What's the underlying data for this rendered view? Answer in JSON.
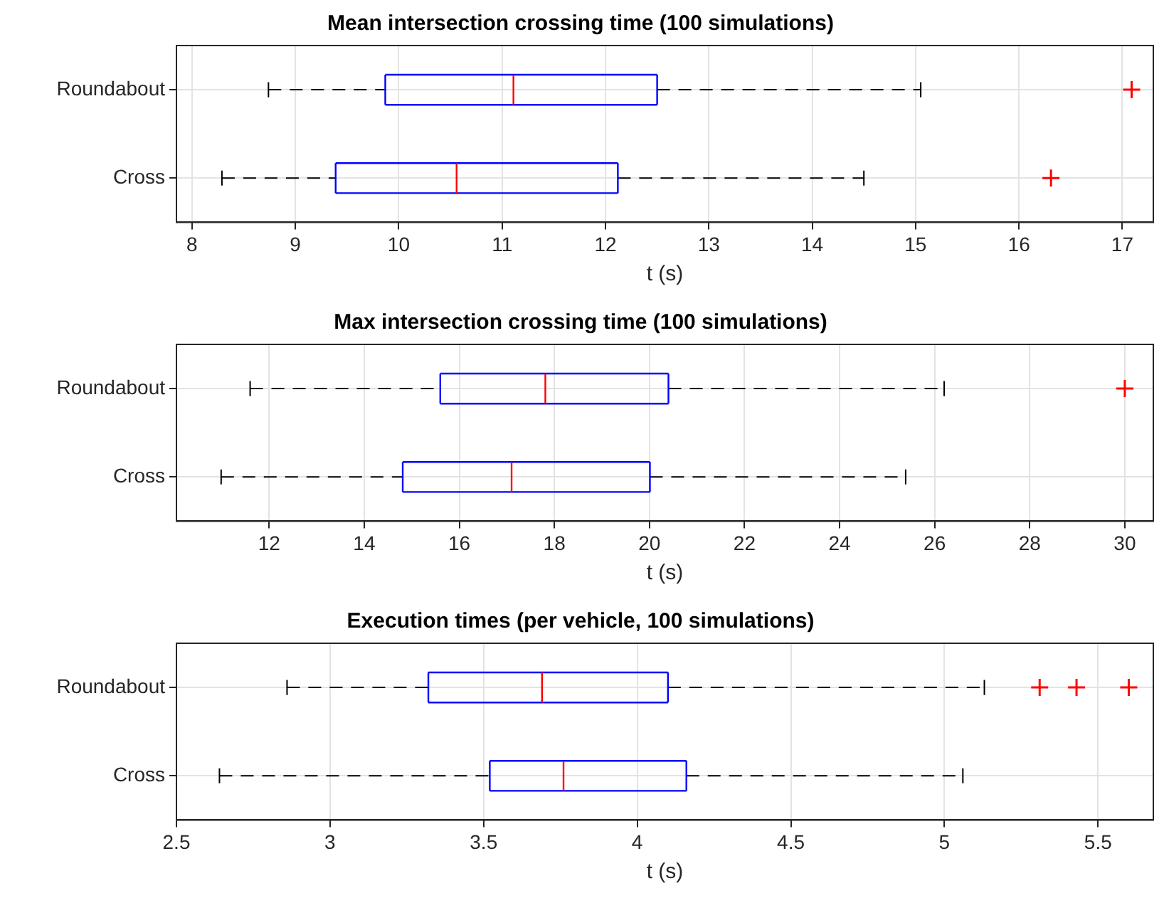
{
  "chart_data": [
    {
      "type": "box",
      "title": "Mean intersection crossing time (100 simulations)",
      "xlabel": "t (s)",
      "orientation": "horizontal",
      "categories": [
        "Roundabout",
        "Cross"
      ],
      "color": "#0000ff",
      "xlim": [
        7.85,
        17.3
      ],
      "xticks": [
        8,
        9,
        10,
        11,
        12,
        13,
        14,
        15,
        16,
        17
      ],
      "grid": true,
      "marker": "cross",
      "boxes": [
        {
          "low": 8.74,
          "q1": 9.87,
          "median": 11.11,
          "q3": 12.5,
          "high": 15.05,
          "outliers": [
            17.09
          ]
        },
        {
          "low": 8.29,
          "q1": 9.39,
          "median": 10.56,
          "q3": 12.12,
          "high": 14.5,
          "outliers": [
            16.31
          ]
        }
      ]
    },
    {
      "type": "box",
      "title": "Max intersection crossing time (100 simulations)",
      "xlabel": "t (s)",
      "orientation": "horizontal",
      "categories": [
        "Roundabout",
        "Cross"
      ],
      "color": "#0000ff",
      "xlim": [
        10.05,
        30.6
      ],
      "xticks": [
        12,
        14,
        16,
        18,
        20,
        22,
        24,
        26,
        28,
        30
      ],
      "grid": true,
      "marker": "cross",
      "boxes": [
        {
          "low": 11.6,
          "q1": 15.6,
          "median": 17.81,
          "q3": 20.4,
          "high": 26.2,
          "outliers": [
            30.0
          ]
        },
        {
          "low": 10.99,
          "q1": 14.81,
          "median": 17.1,
          "q3": 20.01,
          "high": 25.39
        }
      ]
    },
    {
      "type": "box",
      "title": "Execution times (per vehicle, 100 simulations)",
      "xlabel": "t (s)",
      "orientation": "horizontal",
      "categories": [
        "Roundabout",
        "Cross"
      ],
      "color": "#0000ff",
      "xlim": [
        2.5,
        5.68
      ],
      "xticks": [
        2.5,
        3,
        3.5,
        4,
        4.5,
        5,
        5.5
      ],
      "grid": true,
      "marker": "cross",
      "boxes": [
        {
          "low": 2.86,
          "q1": 3.32,
          "median": 3.69,
          "q3": 4.1,
          "high": 5.13,
          "outliers": [
            5.31,
            5.43,
            5.6
          ]
        },
        {
          "low": 2.64,
          "q1": 3.52,
          "median": 3.76,
          "q3": 4.16,
          "high": 5.06
        }
      ]
    }
  ]
}
